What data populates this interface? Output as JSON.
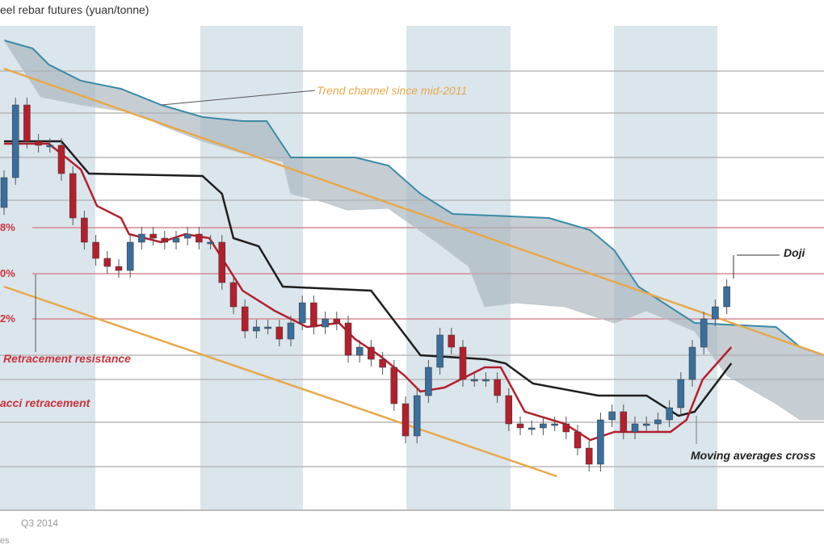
{
  "chart_data": {
    "type": "candlestick",
    "title": "eel rebar futures (yuan/tonne)",
    "x_label": "Q3 2014",
    "footnote": "es",
    "ylim": [
      2400,
      3600
    ],
    "xlim": [
      0,
      71.5
    ],
    "grid": "horizontal",
    "colors": {
      "up": "#3a6e9c",
      "down": "#b3202c",
      "fast_line": "#b3202c",
      "slow_line": "#1e1e1e",
      "cloud": "#a8b4bc",
      "cloud_edge": "#3a8aa8",
      "trend": "#e8a84a",
      "fib": "#d48a90",
      "band": "#dbe5ec"
    },
    "open": [
      3150,
      3224,
      3404,
      3314,
      3304,
      3304,
      3234,
      3124,
      3064,
      3024,
      3004,
      2994,
      3064,
      3084,
      3074,
      3064,
      3074,
      3084,
      3064,
      3064,
      2964,
      2904,
      2844,
      2854,
      2854,
      2824,
      2864,
      2914,
      2854,
      2874,
      2864,
      2784,
      2804,
      2774,
      2754,
      2664,
      2584,
      2684,
      2754,
      2834,
      2804,
      2724,
      2724,
      2724,
      2684,
      2614,
      2604,
      2604,
      2614,
      2614,
      2594,
      2554,
      2514,
      2624,
      2644,
      2594,
      2614,
      2614,
      2624,
      2654,
      2724,
      2804,
      2874,
      2904
    ],
    "close": [
      3224,
      3404,
      3314,
      3304,
      3304,
      3234,
      3124,
      3064,
      3024,
      3004,
      2994,
      3064,
      3084,
      3074,
      3064,
      3074,
      3084,
      3064,
      3064,
      2964,
      2904,
      2844,
      2854,
      2854,
      2824,
      2864,
      2914,
      2854,
      2874,
      2864,
      2784,
      2804,
      2774,
      2754,
      2664,
      2584,
      2684,
      2754,
      2834,
      2804,
      2724,
      2724,
      2724,
      2684,
      2614,
      2604,
      2604,
      2614,
      2614,
      2594,
      2554,
      2514,
      2624,
      2644,
      2594,
      2614,
      2614,
      2624,
      2654,
      2724,
      2804,
      2874,
      2904,
      2954
    ],
    "fast_ma": [
      [
        0,
        3308
      ],
      [
        3.9,
        3308
      ],
      [
        6.7,
        3244
      ],
      [
        8.1,
        3154
      ],
      [
        10.2,
        3124
      ],
      [
        10.9,
        3084
      ],
      [
        13.7,
        3064
      ],
      [
        15.8,
        3084
      ],
      [
        17.9,
        3074
      ],
      [
        20.8,
        2944
      ],
      [
        23.6,
        2894
      ],
      [
        25,
        2874
      ],
      [
        26.4,
        2854
      ],
      [
        29.2,
        2864
      ],
      [
        30.6,
        2824
      ],
      [
        32.7,
        2784
      ],
      [
        34.9,
        2734
      ],
      [
        36.3,
        2694
      ],
      [
        38.4,
        2704
      ],
      [
        41.9,
        2754
      ],
      [
        43.3,
        2754
      ],
      [
        45.4,
        2644
      ],
      [
        48.9,
        2614
      ],
      [
        51.1,
        2574
      ],
      [
        53.2,
        2594
      ],
      [
        58.1,
        2594
      ],
      [
        59.5,
        2624
      ],
      [
        60.9,
        2724
      ],
      [
        63.4,
        2804
      ]
    ],
    "slow_ma": [
      [
        0,
        3314
      ],
      [
        5,
        3314
      ],
      [
        7.4,
        3234
      ],
      [
        17.3,
        3228
      ],
      [
        19,
        3184
      ],
      [
        20,
        3074
      ],
      [
        22.2,
        3054
      ],
      [
        24.3,
        2954
      ],
      [
        32,
        2944
      ],
      [
        36.3,
        2784
      ],
      [
        42,
        2774
      ],
      [
        43.7,
        2764
      ],
      [
        46.1,
        2714
      ],
      [
        51.8,
        2684
      ],
      [
        56,
        2684
      ],
      [
        58.8,
        2634
      ],
      [
        60.2,
        2644
      ],
      [
        63.4,
        2764
      ]
    ],
    "cloud_upper": [
      [
        0,
        3564
      ],
      [
        2.5,
        3544
      ],
      [
        3.9,
        3504
      ],
      [
        6.7,
        3464
      ],
      [
        10.2,
        3444
      ],
      [
        13.7,
        3404
      ],
      [
        17.3,
        3374
      ],
      [
        20.8,
        3364
      ],
      [
        22.9,
        3364
      ],
      [
        25,
        3274
      ],
      [
        30.6,
        3274
      ],
      [
        33.5,
        3254
      ],
      [
        36.3,
        3184
      ],
      [
        39.1,
        3134
      ],
      [
        47.5,
        3124
      ],
      [
        51.1,
        3094
      ],
      [
        53.2,
        3044
      ],
      [
        55.3,
        2954
      ],
      [
        60.2,
        2864
      ],
      [
        67.3,
        2854
      ],
      [
        69.4,
        2804
      ],
      [
        71.5,
        2784
      ]
    ],
    "cloud_lower": [
      [
        0,
        3564
      ],
      [
        3.2,
        3424
      ],
      [
        6.7,
        3404
      ],
      [
        11.6,
        3384
      ],
      [
        13.7,
        3354
      ],
      [
        17.3,
        3314
      ],
      [
        20.8,
        3284
      ],
      [
        24.3,
        3264
      ],
      [
        25,
        3184
      ],
      [
        27.8,
        3164
      ],
      [
        29.9,
        3144
      ],
      [
        33.5,
        3148
      ],
      [
        37.7,
        3064
      ],
      [
        40.5,
        3004
      ],
      [
        41.9,
        2904
      ],
      [
        44.7,
        2914
      ],
      [
        48.9,
        2904
      ],
      [
        53.2,
        2864
      ],
      [
        56,
        2894
      ],
      [
        60.2,
        2844
      ],
      [
        63,
        2734
      ],
      [
        67.3,
        2664
      ],
      [
        69.4,
        2624
      ],
      [
        71.5,
        2624
      ]
    ],
    "trend_upper": [
      [
        0,
        3494
      ],
      [
        71.5,
        2784
      ]
    ],
    "trend_lower": [
      [
        0,
        2954
      ],
      [
        48.2,
        2484
      ]
    ],
    "grid_levels": [
      3488,
      3384,
      3274,
      3168,
      2784,
      2724,
      2618,
      2508
    ],
    "fib_levels": [
      {
        "price": 3100,
        "label": "8%"
      },
      {
        "price": 2986,
        "label": "0%"
      },
      {
        "price": 2874,
        "label": "2%"
      }
    ],
    "annotations": {
      "trend": "Trend channel since mid-2011",
      "doji": "Doji",
      "ma_cross": "Moving averages cross",
      "resistance": "Retracement resistance",
      "fib": "acci retracement"
    }
  }
}
